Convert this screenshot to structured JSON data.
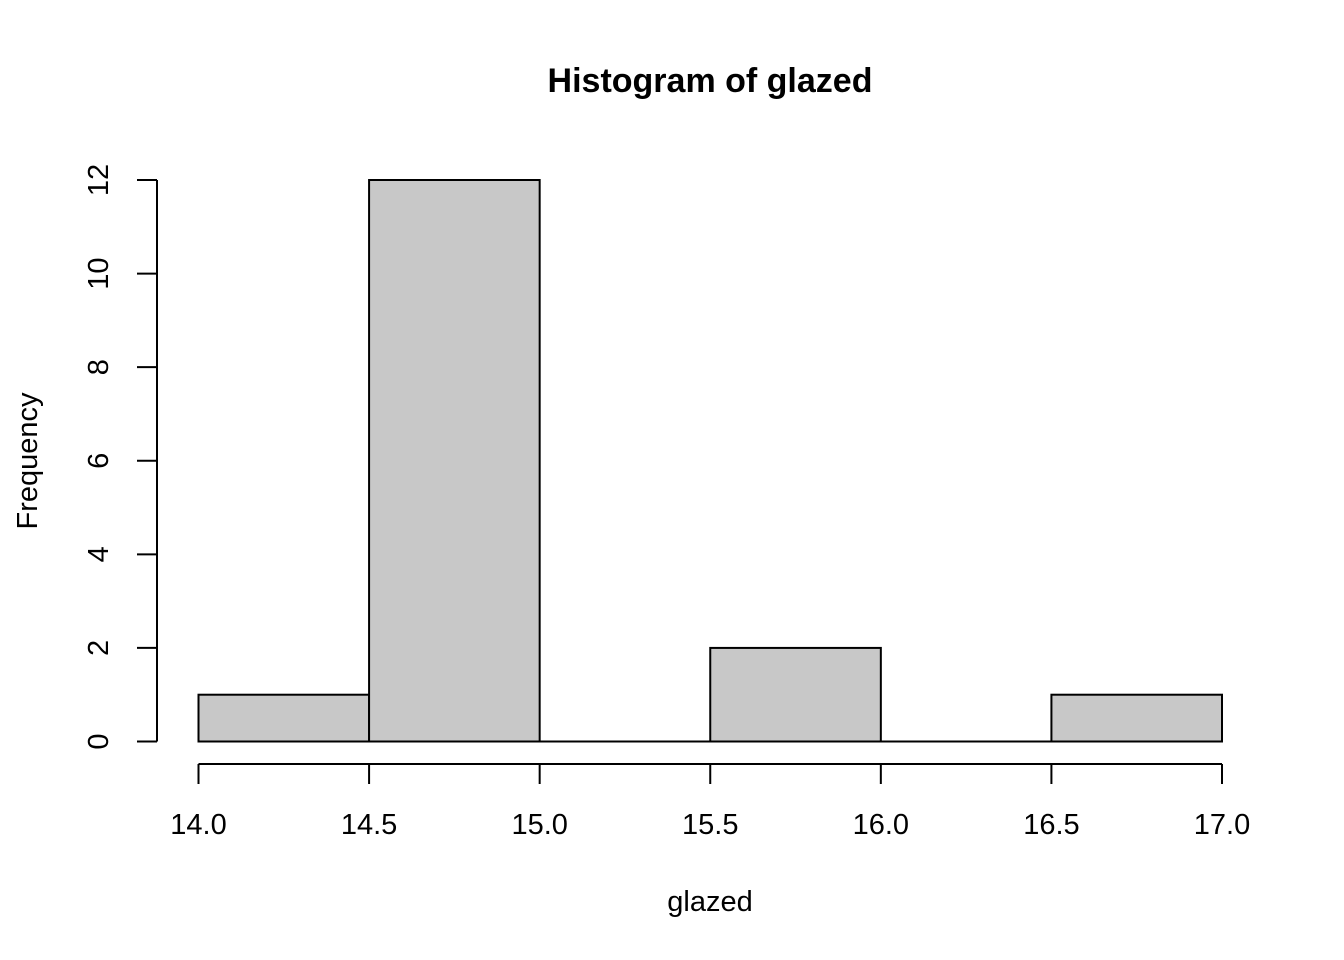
{
  "chart_data": {
    "type": "bar",
    "subtype": "histogram",
    "title": "Histogram of glazed",
    "xlabel": "glazed",
    "ylabel": "Frequency",
    "bins": [
      {
        "from": 14.0,
        "to": 14.5,
        "count": 1
      },
      {
        "from": 14.5,
        "to": 15.0,
        "count": 12
      },
      {
        "from": 15.0,
        "to": 15.5,
        "count": 0
      },
      {
        "from": 15.5,
        "to": 16.0,
        "count": 2
      },
      {
        "from": 16.0,
        "to": 16.5,
        "count": 0
      },
      {
        "from": 16.5,
        "to": 17.0,
        "count": 1
      }
    ],
    "xlim": [
      14.0,
      17.0
    ],
    "ylim": [
      0,
      12
    ],
    "x_ticks": [
      "14.0",
      "14.5",
      "15.0",
      "15.5",
      "16.0",
      "16.5",
      "17.0"
    ],
    "y_ticks": [
      "0",
      "2",
      "4",
      "6",
      "8",
      "10",
      "12"
    ],
    "colors": {
      "bar_fill": "#c8c8c8",
      "bar_stroke": "#000000"
    },
    "grid": false,
    "legend": "none"
  }
}
